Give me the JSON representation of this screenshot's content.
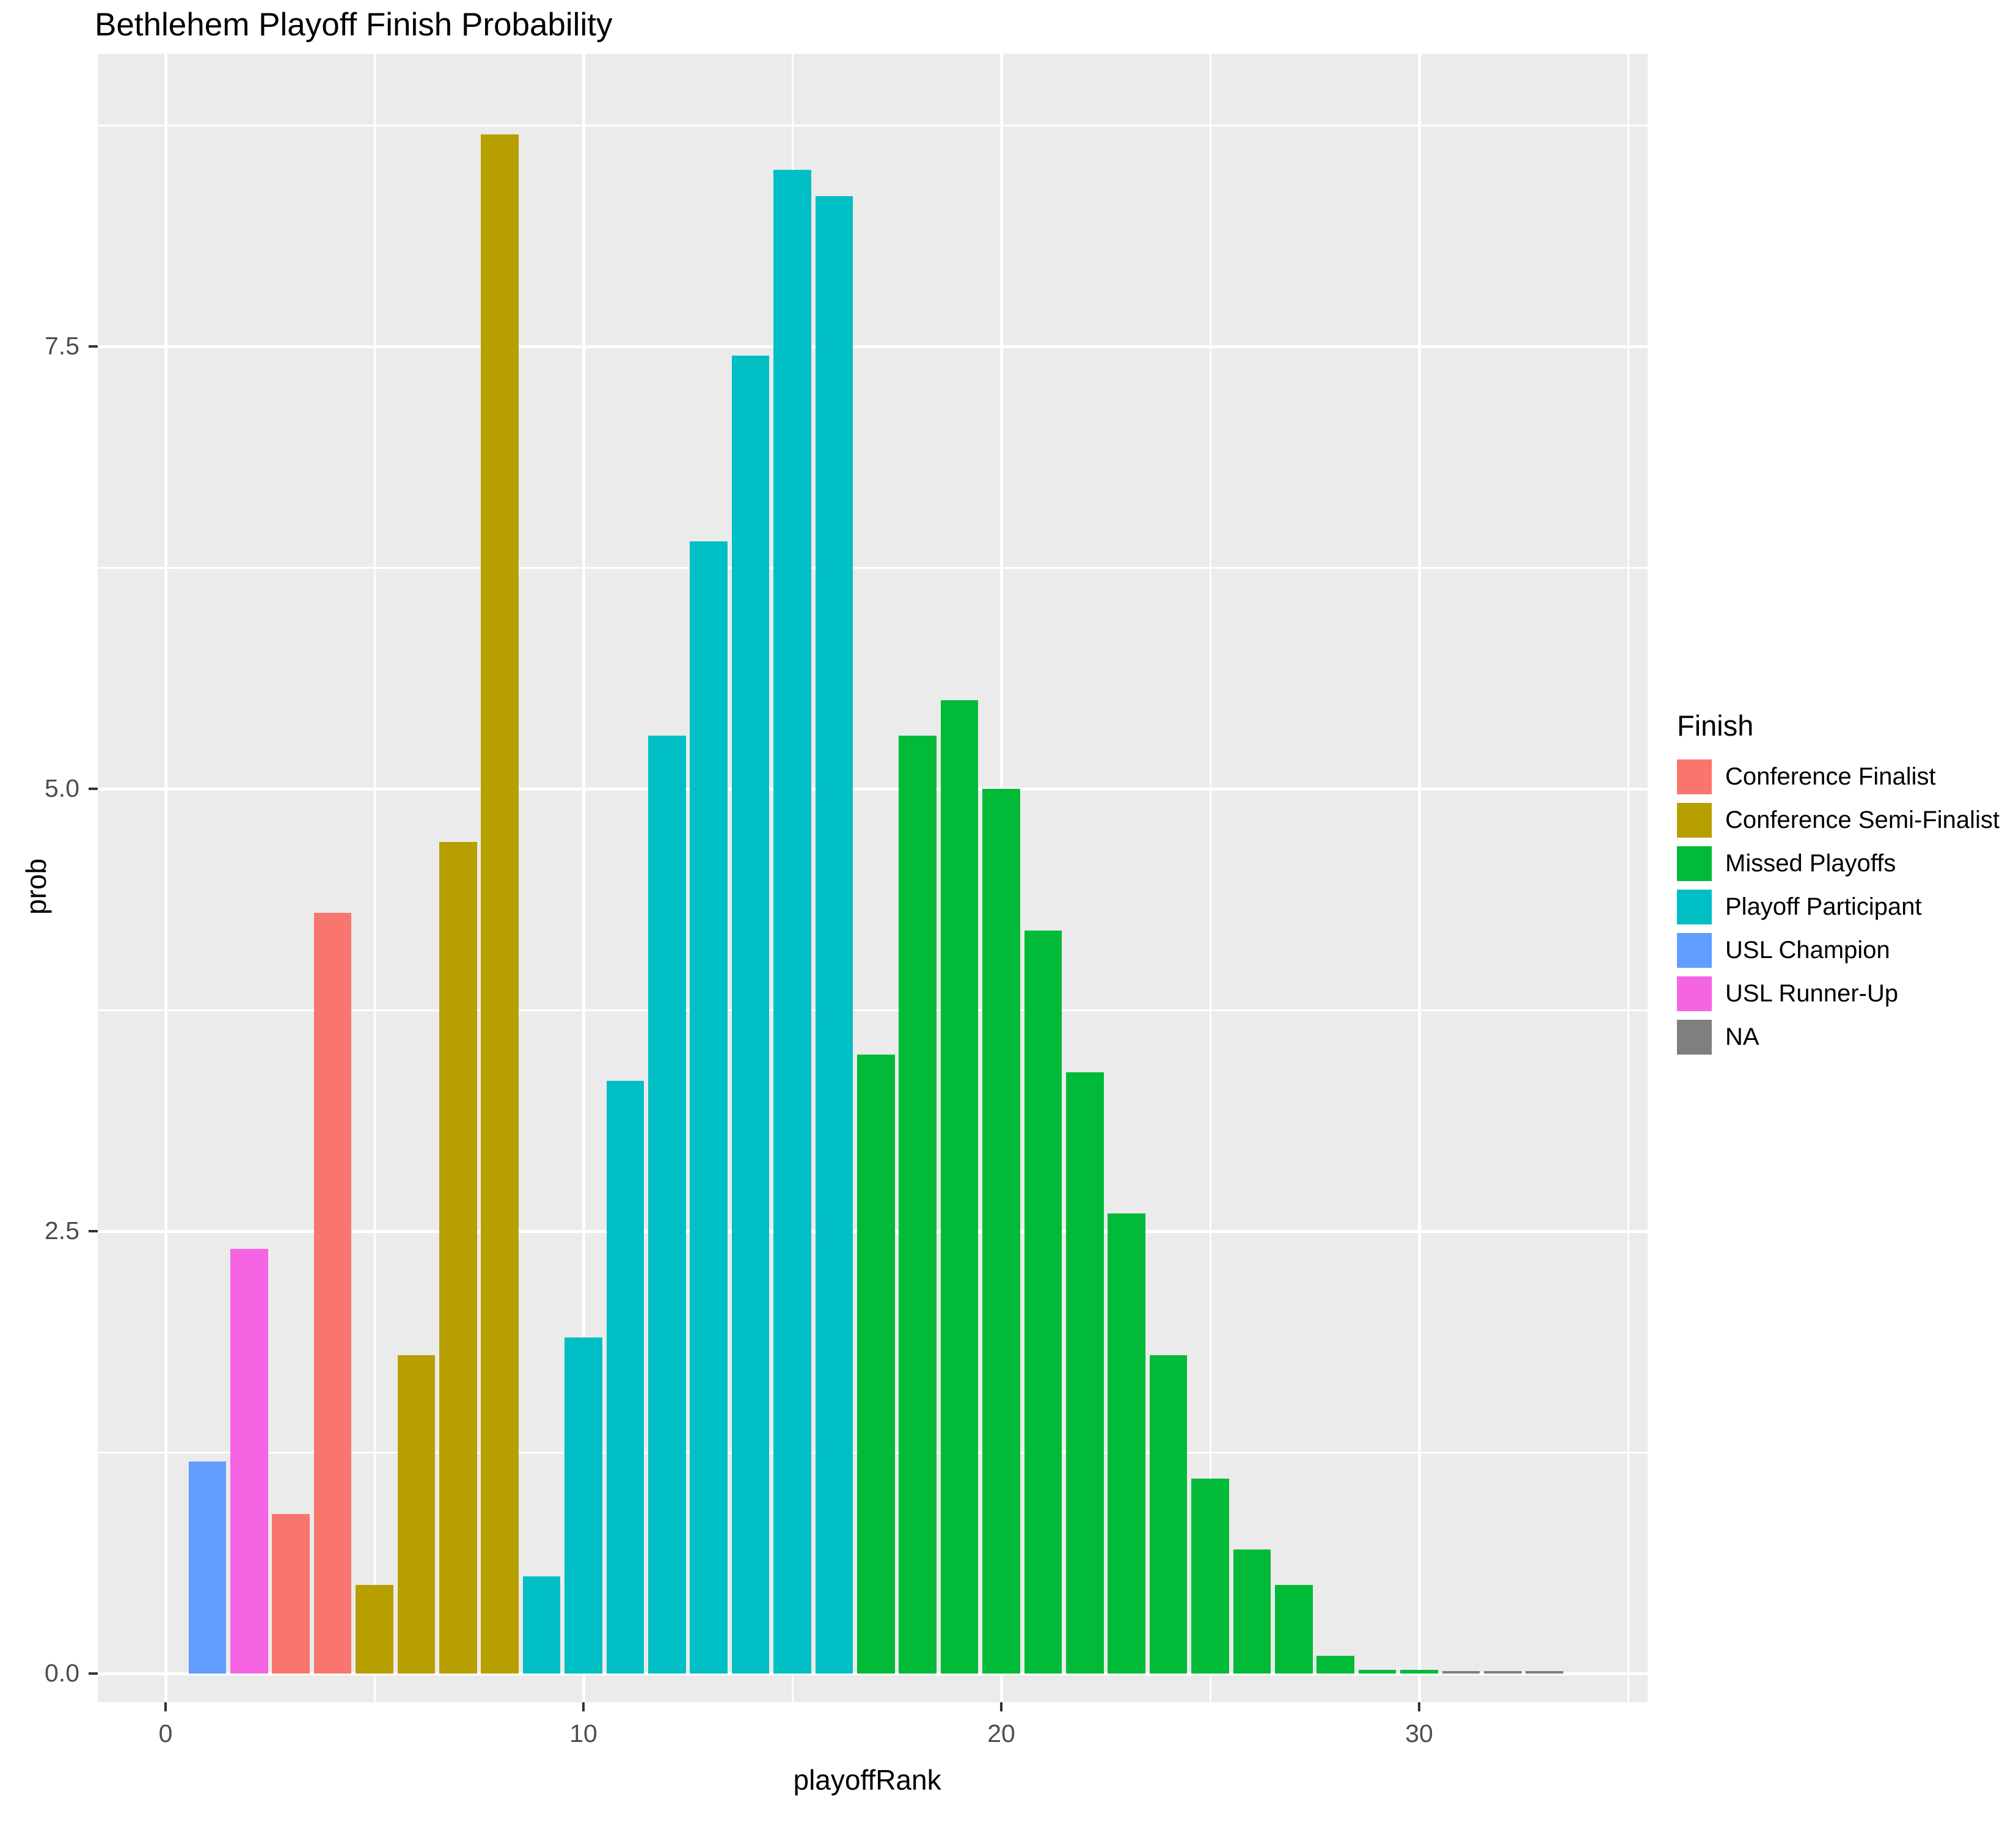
{
  "title": "Bethlehem Playoff Finish Probability",
  "axes": {
    "x_title": "playoffRank",
    "y_title": "prob",
    "x_ticks": [
      {
        "value": 0,
        "label": "0"
      },
      {
        "value": 10,
        "label": "10"
      },
      {
        "value": 20,
        "label": "20"
      },
      {
        "value": 30,
        "label": "30"
      }
    ],
    "y_ticks": [
      {
        "value": 0,
        "label": "0.0"
      },
      {
        "value": 2.5,
        "label": "2.5"
      },
      {
        "value": 5,
        "label": "5.0"
      },
      {
        "value": 7.5,
        "label": "7.5"
      }
    ],
    "x_minor": [
      5,
      15,
      25,
      35
    ],
    "y_minor": [
      1.25,
      3.75,
      6.25,
      8.75
    ]
  },
  "legend": {
    "title": "Finish",
    "entries": [
      {
        "label": "Conference Finalist",
        "color": "#F8766D"
      },
      {
        "label": "Conference Semi-Finalist",
        "color": "#B79F00"
      },
      {
        "label": "Missed Playoffs",
        "color": "#00BA38"
      },
      {
        "label": "Playoff Participant",
        "color": "#00BFC4"
      },
      {
        "label": "USL Champion",
        "color": "#619CFF"
      },
      {
        "label": "USL Runner-Up",
        "color": "#F564E3"
      },
      {
        "label": "NA",
        "color": "#7F7F7F"
      }
    ]
  },
  "colors": {
    "panel_background": "#EBEBEB",
    "gridline": "#FFFFFF",
    "tick_text": "#4D4D4D",
    "tick_mark": "#333333"
  },
  "chart_data": {
    "type": "bar",
    "title": "Bethlehem Playoff Finish Probability",
    "xlabel": "playoffRank",
    "ylabel": "prob",
    "xlim": [
      -1.6,
      35.5
    ],
    "ylim": [
      0,
      9.15
    ],
    "grid": true,
    "legend_title": "Finish",
    "legend_position": "right",
    "bar_width": 0.9,
    "series_colors": {
      "Conference Finalist": "#F8766D",
      "Conference Semi-Finalist": "#B79F00",
      "Missed Playoffs": "#00BA38",
      "Playoff Participant": "#00BFC4",
      "USL Champion": "#619CFF",
      "USL Runner-Up": "#F564E3",
      "NA": "#7F7F7F"
    },
    "bars": [
      {
        "rank": 1,
        "value": 1.2,
        "finish": "USL Champion"
      },
      {
        "rank": 2,
        "value": 2.4,
        "finish": "USL Runner-Up"
      },
      {
        "rank": 3,
        "value": 0.9,
        "finish": "Conference Finalist"
      },
      {
        "rank": 4,
        "value": 4.3,
        "finish": "Conference Finalist"
      },
      {
        "rank": 5,
        "value": 0.5,
        "finish": "Conference Semi-Finalist"
      },
      {
        "rank": 6,
        "value": 1.8,
        "finish": "Conference Semi-Finalist"
      },
      {
        "rank": 7,
        "value": 4.7,
        "finish": "Conference Semi-Finalist"
      },
      {
        "rank": 8,
        "value": 8.7,
        "finish": "Conference Semi-Finalist"
      },
      {
        "rank": 9,
        "value": 0.55,
        "finish": "Playoff Participant"
      },
      {
        "rank": 10,
        "value": 1.9,
        "finish": "Playoff Participant"
      },
      {
        "rank": 11,
        "value": 3.35,
        "finish": "Playoff Participant"
      },
      {
        "rank": 12,
        "value": 5.3,
        "finish": "Playoff Participant"
      },
      {
        "rank": 13,
        "value": 6.4,
        "finish": "Playoff Participant"
      },
      {
        "rank": 14,
        "value": 7.45,
        "finish": "Playoff Participant"
      },
      {
        "rank": 15,
        "value": 8.5,
        "finish": "Playoff Participant"
      },
      {
        "rank": 16,
        "value": 8.35,
        "finish": "Playoff Participant"
      },
      {
        "rank": 17,
        "value": 3.5,
        "finish": "Missed Playoffs"
      },
      {
        "rank": 18,
        "value": 5.3,
        "finish": "Missed Playoffs"
      },
      {
        "rank": 19,
        "value": 5.5,
        "finish": "Missed Playoffs"
      },
      {
        "rank": 20,
        "value": 5.0,
        "finish": "Missed Playoffs"
      },
      {
        "rank": 21,
        "value": 4.2,
        "finish": "Missed Playoffs"
      },
      {
        "rank": 22,
        "value": 3.4,
        "finish": "Missed Playoffs"
      },
      {
        "rank": 23,
        "value": 2.6,
        "finish": "Missed Playoffs"
      },
      {
        "rank": 24,
        "value": 1.8,
        "finish": "Missed Playoffs"
      },
      {
        "rank": 25,
        "value": 1.1,
        "finish": "Missed Playoffs"
      },
      {
        "rank": 26,
        "value": 0.7,
        "finish": "Missed Playoffs"
      },
      {
        "rank": 27,
        "value": 0.5,
        "finish": "Missed Playoffs"
      },
      {
        "rank": 28,
        "value": 0.1,
        "finish": "Missed Playoffs"
      },
      {
        "rank": 29,
        "value": 0.02,
        "finish": "Missed Playoffs"
      },
      {
        "rank": 30,
        "value": 0.02,
        "finish": "Missed Playoffs"
      },
      {
        "rank": 31,
        "value": 0.015,
        "finish": "NA"
      },
      {
        "rank": 32,
        "value": 0.015,
        "finish": "NA"
      },
      {
        "rank": 33,
        "value": 0.015,
        "finish": "NA"
      }
    ]
  }
}
